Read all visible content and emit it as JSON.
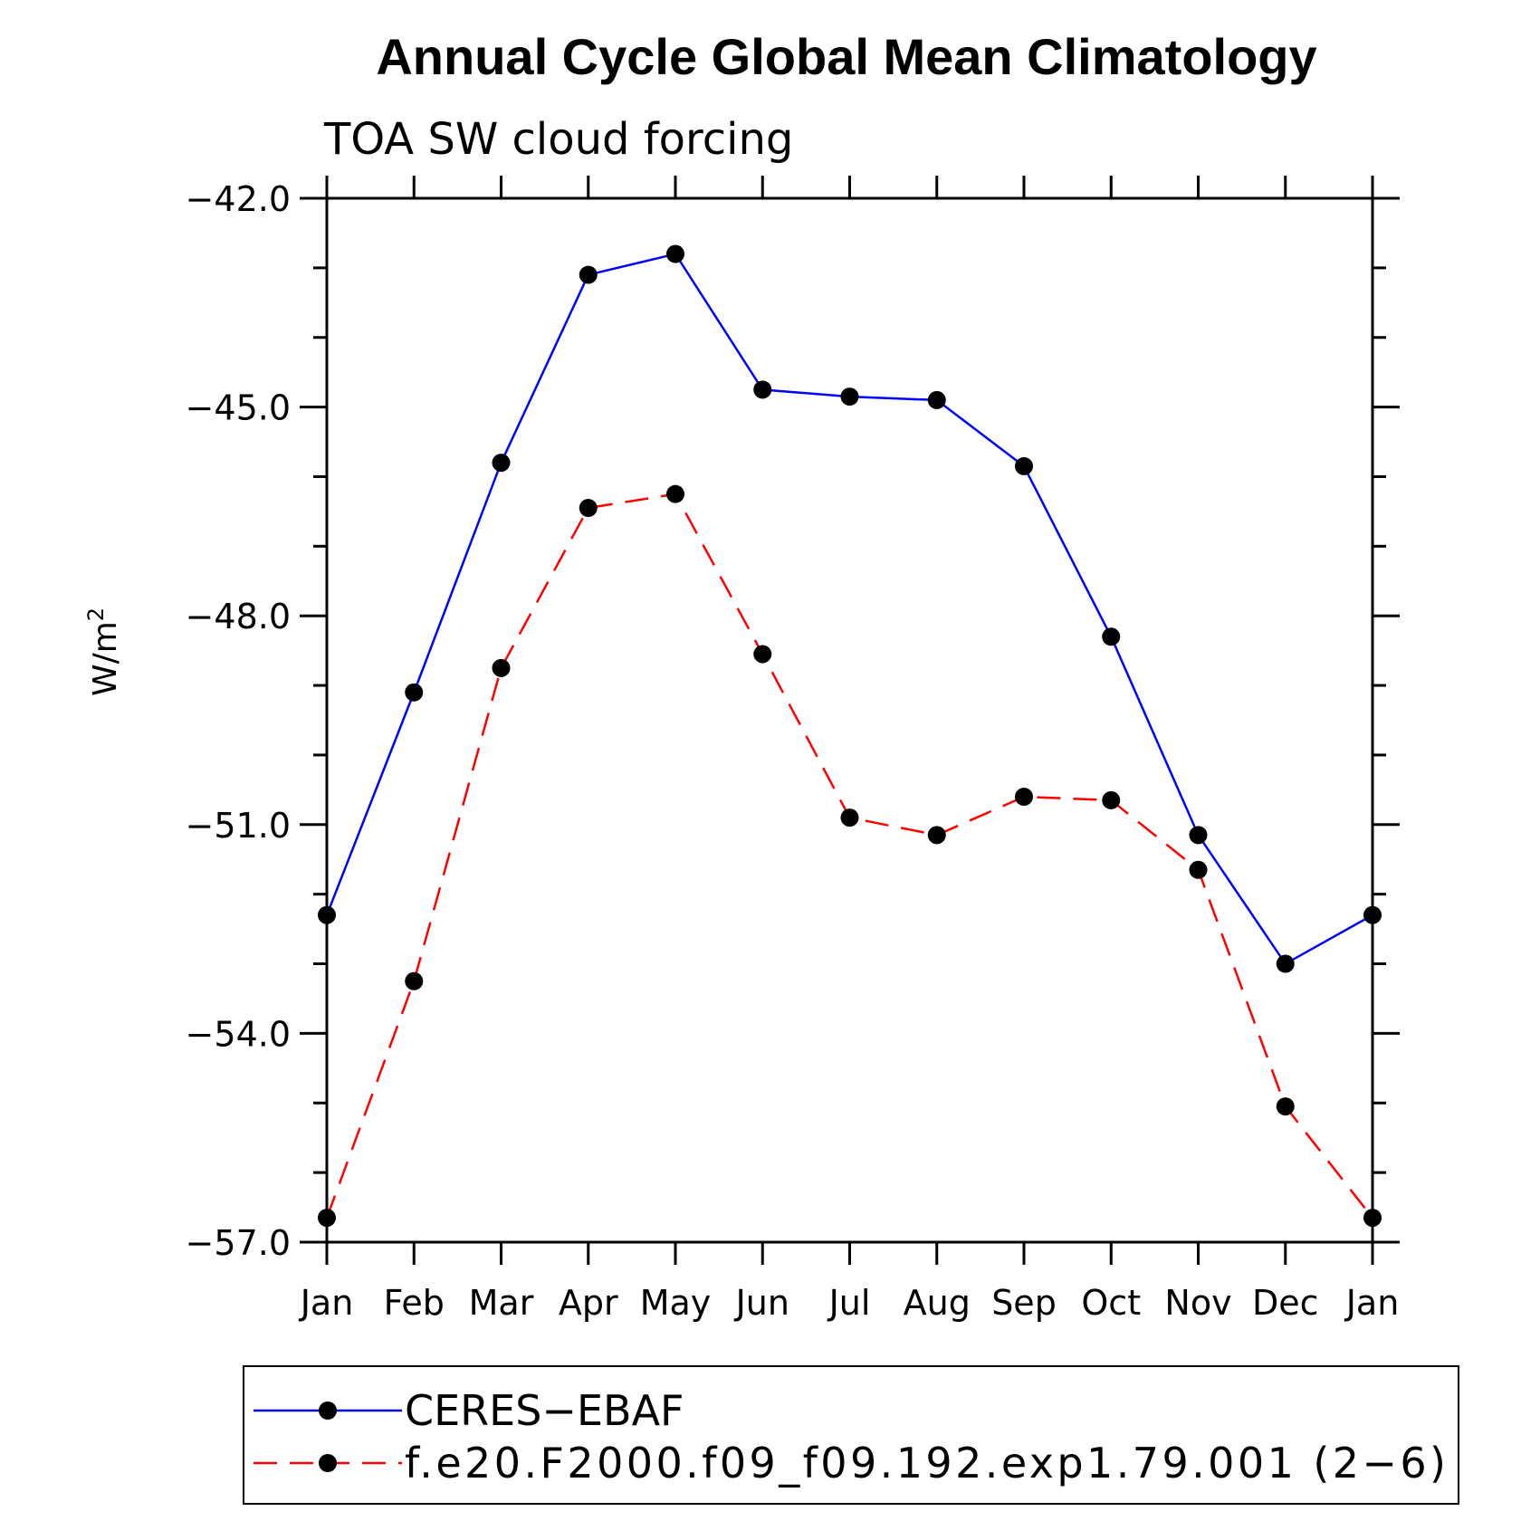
{
  "chart_data": {
    "type": "line",
    "title": "Annual Cycle Global Mean Climatology",
    "subtitle": "TOA SW cloud forcing",
    "ylabel": "W/m",
    "ylabel_superscript": "2",
    "xlabel": "",
    "categories": [
      "Jan",
      "Feb",
      "Mar",
      "Apr",
      "May",
      "Jun",
      "Jul",
      "Aug",
      "Sep",
      "Oct",
      "Nov",
      "Dec",
      "Jan"
    ],
    "ylim": [
      -57.0,
      -42.0
    ],
    "yticks": [
      -42.0,
      -45.0,
      -48.0,
      -51.0,
      -54.0,
      -57.0
    ],
    "ytick_labels": [
      "−42.0",
      "−45.0",
      "−48.0",
      "−51.0",
      "−54.0",
      "−57.0"
    ],
    "grid": false,
    "legend_position": "bottom",
    "series": [
      {
        "name": "CERES−EBAF",
        "color": "#0000ff",
        "dash": "solid",
        "values": [
          -52.3,
          -49.1,
          -45.8,
          -43.1,
          -42.8,
          -44.75,
          -44.85,
          -44.9,
          -45.85,
          -48.3,
          -51.15,
          -53.0,
          -52.3
        ]
      },
      {
        "name": "f.e20.F2000.f09_f09.192.exp1.79.001 (2−6)",
        "color": "#ff0000",
        "dash": "dashed",
        "values": [
          -56.65,
          -53.25,
          -48.75,
          -46.45,
          -46.25,
          -48.55,
          -50.9,
          -51.15,
          -50.6,
          -50.65,
          -51.65,
          -55.05,
          -56.65
        ]
      }
    ]
  }
}
